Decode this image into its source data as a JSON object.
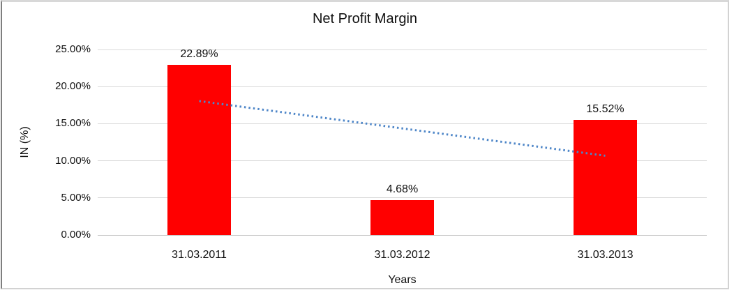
{
  "chart_data": {
    "type": "bar",
    "title": "Net Profit Margin",
    "categories": [
      "31.03.2011",
      "31.03.2012",
      "31.03.2013"
    ],
    "values": [
      22.89,
      4.68,
      15.52
    ],
    "data_labels": [
      "22.89%",
      "4.68%",
      "15.52%"
    ],
    "xlabel": "Years",
    "ylabel": "IN (%)",
    "ylim": [
      0,
      25
    ],
    "ytick_step": 5,
    "ytick_labels": [
      "0.00%",
      "5.00%",
      "10.00%",
      "15.00%",
      "20.00%",
      "25.00%"
    ],
    "grid": true,
    "legend": "none",
    "colors": {
      "bar": "#ff0000",
      "trendline": "#4e86c8",
      "gridline": "#d9d9d9",
      "axis_line": "#c0c0c0"
    },
    "trendline": {
      "type": "linear",
      "style": "dotted",
      "start_value": 18.05,
      "end_value": 10.68
    }
  }
}
